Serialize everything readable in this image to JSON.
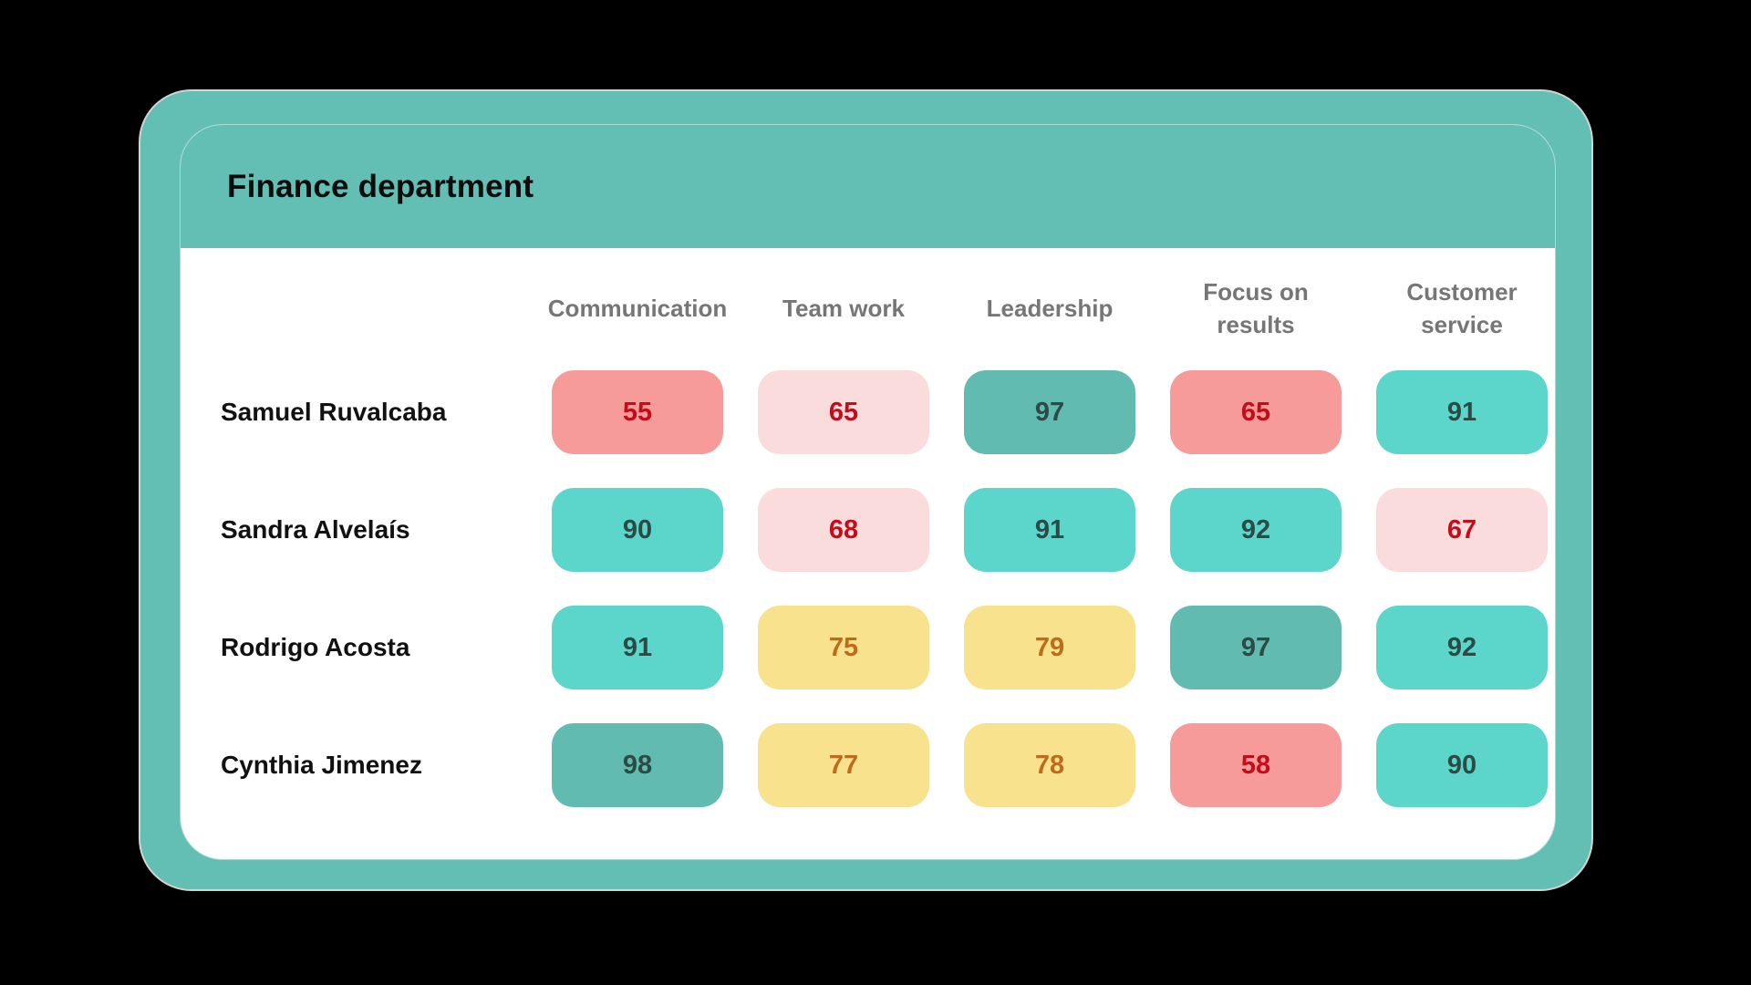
{
  "title": "Finance department",
  "chart_data": {
    "type": "table",
    "title": "Finance department",
    "columns": [
      "Communication",
      "Team work",
      "Leadership",
      "Focus on results",
      "Customer service"
    ],
    "row_names": [
      "Samuel Ruvalcaba",
      "Sandra Alvelaís",
      "Rodrigo Acosta",
      "Cynthia Jimenez"
    ],
    "values": [
      [
        55,
        65,
        97,
        65,
        91
      ],
      [
        90,
        68,
        91,
        92,
        67
      ],
      [
        91,
        75,
        79,
        97,
        92
      ],
      [
        98,
        77,
        78,
        58,
        90
      ]
    ],
    "cell_levels": [
      [
        "bad",
        "low",
        "excellent",
        "bad",
        "good"
      ],
      [
        "good",
        "low",
        "good",
        "good",
        "low"
      ],
      [
        "good",
        "medium",
        "medium",
        "excellent",
        "good"
      ],
      [
        "excellent",
        "medium",
        "medium",
        "bad",
        "good"
      ]
    ],
    "level_colors": {
      "excellent": {
        "bg": "#61BBB1",
        "text": "#2C4A46"
      },
      "good": {
        "bg": "#5CD6CA",
        "text": "#2C4A46"
      },
      "medium": {
        "bg": "#F8E28D",
        "text": "#BD6B1D"
      },
      "low": {
        "bg": "#FADCDC",
        "text": "#C30D1B"
      },
      "bad": {
        "bg": "#F69A9A",
        "text": "#C30D1B"
      }
    }
  },
  "colors": {
    "background": "#000000",
    "frame": "#63BEB3",
    "frame_outline": "#D3D3D3",
    "card_body": "#FFFFFF",
    "title_text": "#0C0C0C",
    "column_header_text": "#767676",
    "row_name_text": "#111111"
  }
}
